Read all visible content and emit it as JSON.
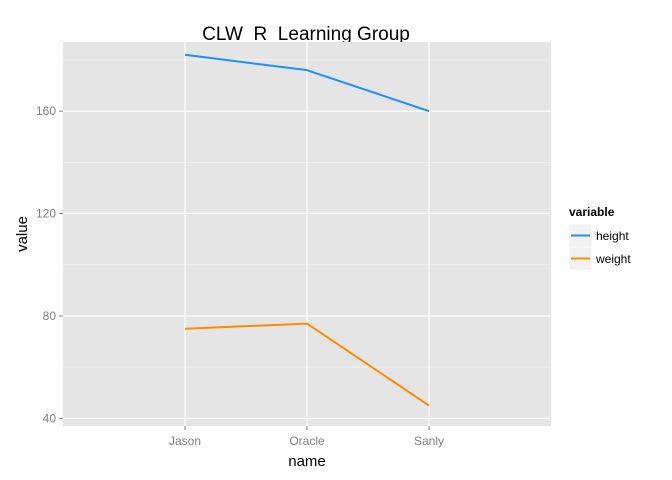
{
  "chart_data": {
    "type": "line",
    "title": "CLW_R_Learning Group",
    "xlabel": "name",
    "ylabel": "value",
    "categories": [
      "Jason",
      "Oracle",
      "Sanly"
    ],
    "ylim": [
      37,
      187
    ],
    "yticks": [
      40,
      80,
      120,
      160
    ],
    "grid": true,
    "legend": {
      "title": "variable",
      "placement": "right"
    },
    "series": [
      {
        "name": "height",
        "values": [
          182,
          176,
          160
        ],
        "color": "#1e90ff"
      },
      {
        "name": "weight",
        "values": [
          75,
          77,
          45
        ],
        "color": "#ff8c00"
      }
    ],
    "colors": {
      "panel_background": "#e5e5e5",
      "grid_major": "#ffffff",
      "grid_minor": "#f2f2f2",
      "legend_key_background": "#f2f2f2"
    }
  }
}
